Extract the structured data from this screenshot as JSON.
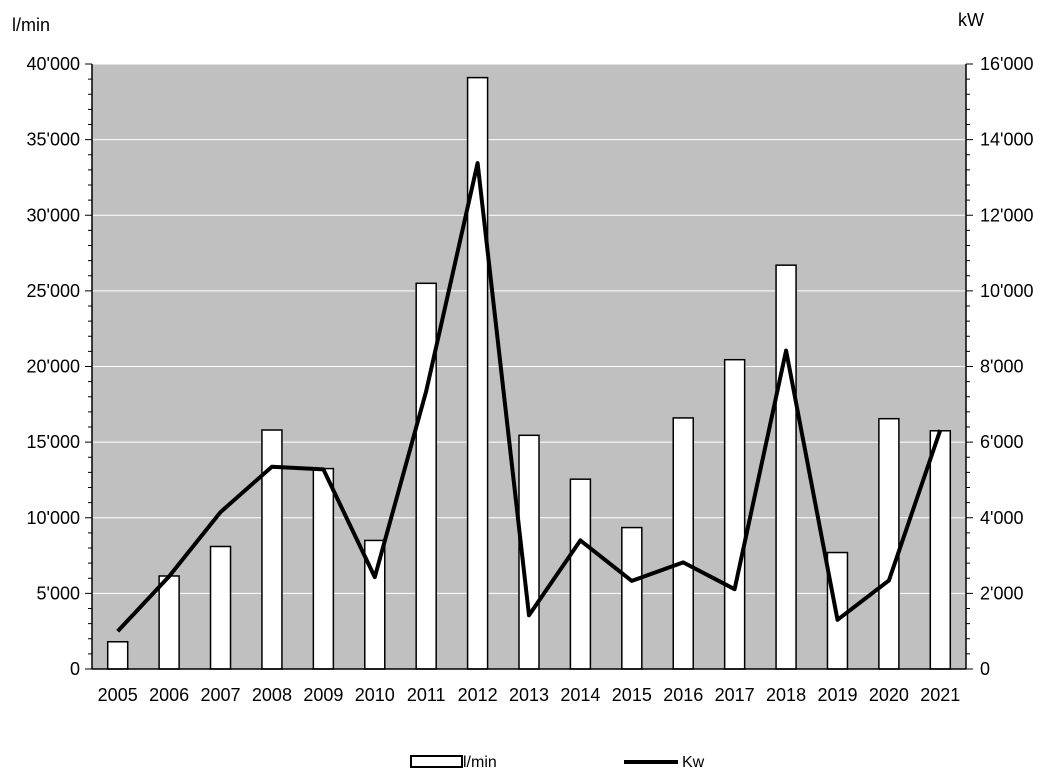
{
  "chart_data": {
    "type": "bar",
    "categories": [
      "2005",
      "2006",
      "2007",
      "2008",
      "2009",
      "2010",
      "2011",
      "2012",
      "2013",
      "2014",
      "2015",
      "2016",
      "2017",
      "2018",
      "2019",
      "2020",
      "2021"
    ],
    "series": [
      {
        "name": "l/min",
        "type": "bar",
        "axis": "left",
        "values": [
          1800,
          6150,
          8100,
          15800,
          13250,
          8500,
          25500,
          39100,
          15450,
          12550,
          9350,
          16600,
          20450,
          26700,
          7700,
          16550,
          15750
        ]
      },
      {
        "name": "Kw",
        "type": "line",
        "axis": "right",
        "values": [
          1000,
          2450,
          4150,
          5350,
          5280,
          2430,
          7350,
          13380,
          1420,
          3400,
          2330,
          2820,
          2110,
          8420,
          1300,
          2340,
          6320
        ]
      }
    ],
    "y_left": {
      "unit": "l/min",
      "ylim": [
        0,
        40000
      ],
      "ticks": [
        "0",
        "5'000",
        "10'000",
        "15'000",
        "20'000",
        "25'000",
        "30'000",
        "35'000",
        "40'000"
      ]
    },
    "y_right": {
      "unit": "kW",
      "ylim": [
        0,
        16000
      ],
      "ticks": [
        "0",
        "2'000",
        "4'000",
        "6'000",
        "8'000",
        "10'000",
        "12'000",
        "14'000",
        "16'000"
      ]
    },
    "grid": true,
    "legend_position": "bottom-center",
    "colors": {
      "plot_background": "#c0c0c0",
      "bar_fill": "#ffffff",
      "line": "#000000",
      "grid": "#ffffff"
    }
  }
}
